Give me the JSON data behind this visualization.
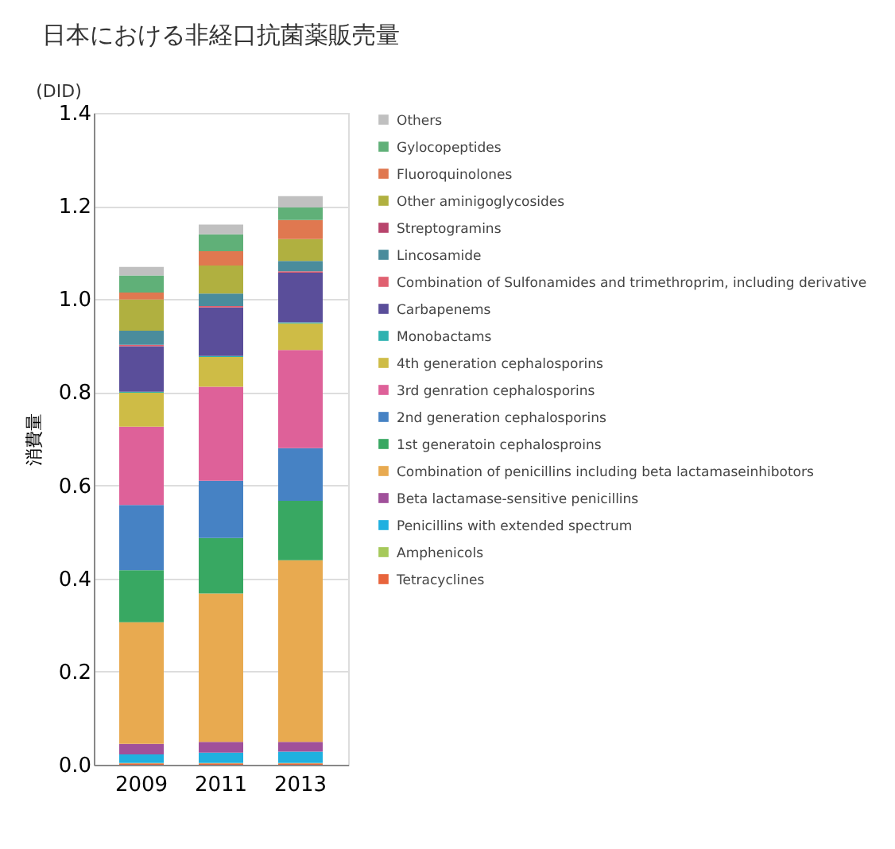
{
  "chart_data": {
    "type": "bar",
    "stacked": true,
    "title": "日本における非経口抗菌薬販売量",
    "ylabel": "消費量",
    "annotations": [
      "(DID)"
    ],
    "categories": [
      "2009",
      "2011",
      "2013"
    ],
    "series": [
      {
        "name": "Tetracyclines",
        "color": "#e8643c",
        "values": [
          0.003,
          0.003,
          0.003
        ]
      },
      {
        "name": "Amphenicols",
        "color": "#a6c95a",
        "values": [
          0.001,
          0.001,
          0.001
        ]
      },
      {
        "name": "Penicillins with extended spectrum",
        "color": "#1fb0e0",
        "values": [
          0.018,
          0.022,
          0.024
        ]
      },
      {
        "name": "Beta lactamase-sensitive penicillins",
        "color": "#a0509a",
        "values": [
          0.023,
          0.023,
          0.021
        ]
      },
      {
        "name": "Combination of penicillins including beta lactamaseinhibotors",
        "color": "#e8aa50",
        "values": [
          0.261,
          0.319,
          0.39
        ]
      },
      {
        "name": "1st generatoin cephalosproins",
        "color": "#38a862",
        "values": [
          0.112,
          0.119,
          0.128
        ]
      },
      {
        "name": "2nd generation cephalosporins",
        "color": "#4682c4",
        "values": [
          0.14,
          0.123,
          0.113
        ]
      },
      {
        "name": "3rd genration cephalosporins",
        "color": "#de6199",
        "values": [
          0.168,
          0.202,
          0.211
        ]
      },
      {
        "name": "4th generation cephalosporins",
        "color": "#cebc46",
        "values": [
          0.073,
          0.064,
          0.057
        ]
      },
      {
        "name": "Monobactams",
        "color": "#2eb2b0",
        "values": [
          0.002,
          0.002,
          0.002
        ]
      },
      {
        "name": "Carbapenems",
        "color": "#5a4e9a",
        "values": [
          0.098,
          0.104,
          0.107
        ]
      },
      {
        "name": "Combination of Sulfonamides and trimethroprim, including derivative",
        "color": "#e06070",
        "values": [
          0.003,
          0.003,
          0.003
        ]
      },
      {
        "name": "Lincosamide",
        "color": "#4a8c9c",
        "values": [
          0.03,
          0.027,
          0.022
        ]
      },
      {
        "name": "Streptogramins",
        "color": "#b8446c",
        "values": [
          null,
          null,
          null
        ]
      },
      {
        "name": "Other aminigoglycosides",
        "color": "#b0b040",
        "values": [
          0.067,
          0.06,
          0.047
        ]
      },
      {
        "name": "Fluoroquinolones",
        "color": "#e07850",
        "values": [
          0.015,
          0.031,
          0.041
        ]
      },
      {
        "name": "Gylocopeptides",
        "color": "#60b078",
        "values": [
          0.037,
          0.036,
          0.027
        ]
      },
      {
        "name": "Others",
        "color": "#c0c0c0",
        "values": [
          0.018,
          0.021,
          0.024
        ]
      }
    ],
    "ylim": [
      0,
      1.4
    ],
    "yticks": [
      {
        "value": 0,
        "label": "0.0"
      },
      {
        "value": 0.2,
        "label": "0.2"
      },
      {
        "value": 0.4,
        "label": "0.4"
      },
      {
        "value": 0.6,
        "label": "0.6"
      },
      {
        "value": 0.8,
        "label": "0.8"
      },
      {
        "value": 1.0,
        "label": "1.0"
      },
      {
        "value": 1.2,
        "label": "1.2"
      },
      {
        "value": 1.4,
        "label": "1.4"
      }
    ],
    "grid": "y",
    "legend": "right"
  }
}
